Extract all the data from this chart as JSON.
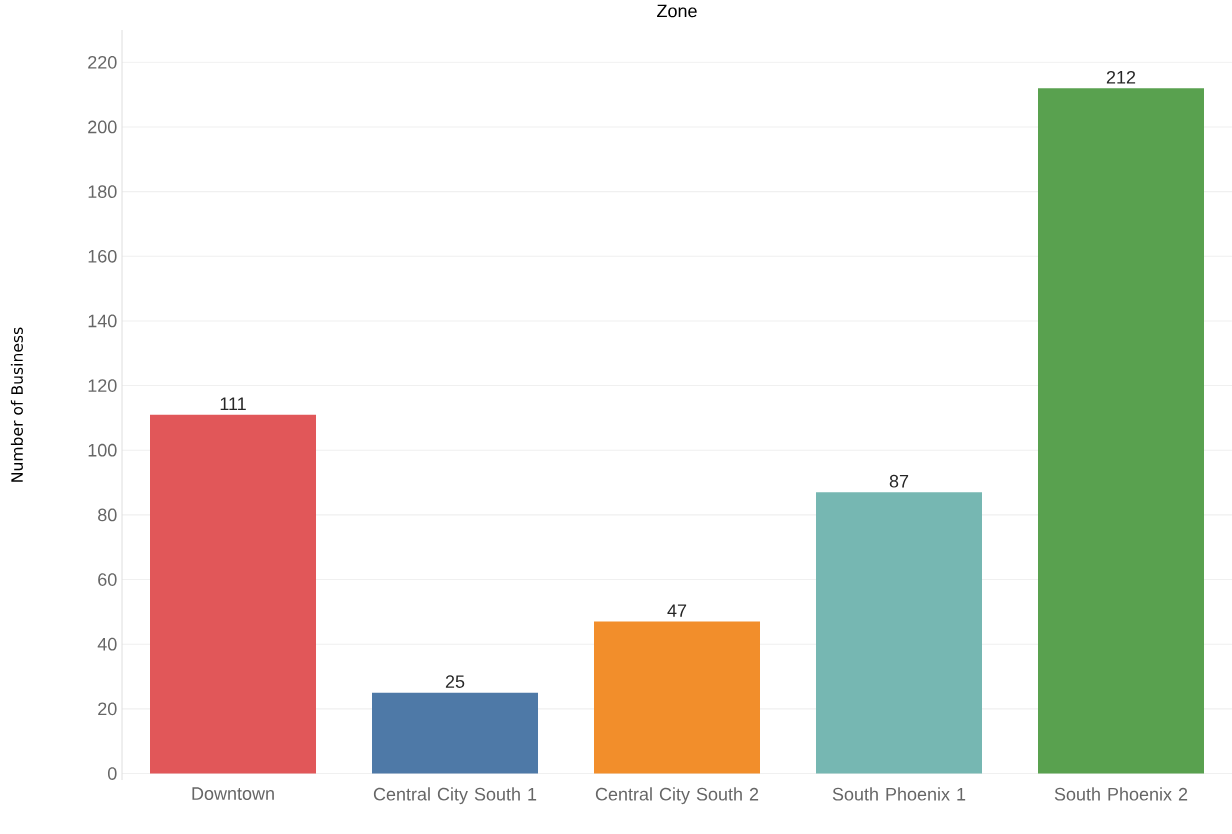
{
  "chart_data": {
    "type": "bar",
    "title": "Zone",
    "ylabel": "Number of Business",
    "categories": [
      "Downtown",
      "Central City South 1",
      "Central City South 2",
      "South Phoenix 1",
      "South Phoenix 2"
    ],
    "values": [
      111,
      25,
      47,
      87,
      212
    ],
    "colors": [
      "#e15759",
      "#4e79a7",
      "#f28e2b",
      "#76b7b2",
      "#59a14f"
    ],
    "ylim": [
      -2,
      230
    ],
    "yticks": [
      0,
      20,
      40,
      60,
      80,
      100,
      120,
      140,
      160,
      180,
      200,
      220
    ],
    "grid": "y",
    "data_labels": true
  }
}
